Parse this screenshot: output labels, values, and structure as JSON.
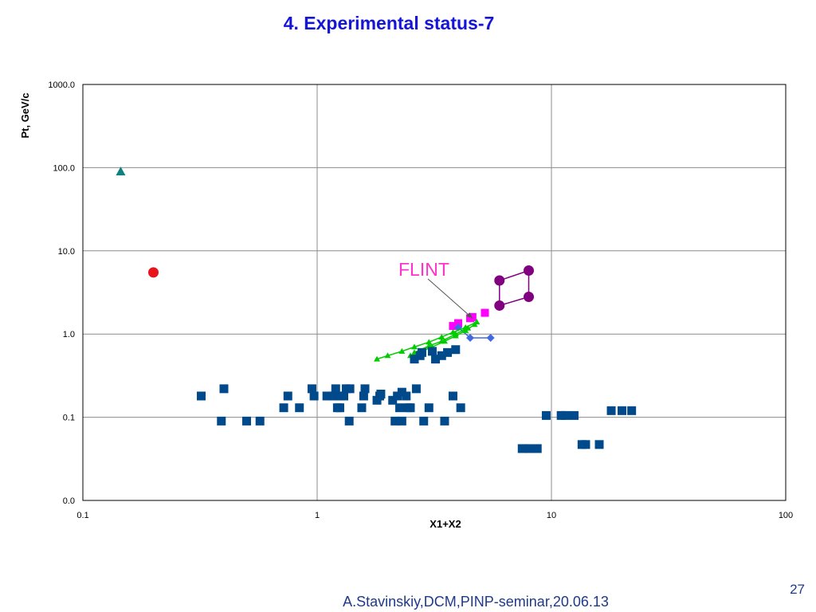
{
  "slide": {
    "title": "4. Experimental status-7",
    "footer": "A.Stavinskiy,DCM,PINP-seminar,20.06.13",
    "page_number": "27"
  },
  "chart_data": {
    "type": "scatter",
    "title": "",
    "xlabel": "X1+X2",
    "ylabel": "Pt, GeV/c",
    "xscale": "log",
    "yscale": "log",
    "xlim": [
      0.1,
      100
    ],
    "ylim": [
      0.01,
      1000
    ],
    "grid": true,
    "x_ticks": [
      0.1,
      1,
      10,
      100
    ],
    "x_tick_labels": [
      "0.1",
      "1",
      "10",
      "100"
    ],
    "y_ticks": [
      0.01,
      0.1,
      1,
      10,
      100,
      1000
    ],
    "y_tick_labels": [
      "0.0",
      "0.1",
      "1.0",
      "10.0",
      "100.0",
      "1000.0"
    ],
    "annotations": [
      {
        "text": "FLINT",
        "arrow_to": [
          4.6,
          1.55
        ],
        "color": "#ff33cc"
      }
    ],
    "series": [
      {
        "name": "triangle-point",
        "marker": "triangle",
        "color": "#0e8080",
        "connected": false,
        "points": [
          [
            0.145,
            90
          ]
        ]
      },
      {
        "name": "circle-point",
        "marker": "circle",
        "color": "#e8141b",
        "connected": false,
        "points": [
          [
            0.2,
            5.5
          ]
        ]
      },
      {
        "name": "purple-box",
        "marker": "circle",
        "color": "#800080",
        "connected": true,
        "closed": true,
        "points": [
          [
            6.0,
            4.4
          ],
          [
            8.0,
            5.8
          ],
          [
            8.0,
            2.8
          ],
          [
            6.0,
            2.2
          ]
        ]
      },
      {
        "name": "flint-squares",
        "marker": "square-small",
        "color": "#ff00ff",
        "connected": false,
        "points": [
          [
            3.8,
            1.25
          ],
          [
            4.0,
            1.35
          ],
          [
            4.5,
            1.55
          ],
          [
            4.6,
            1.6
          ],
          [
            5.2,
            1.8
          ]
        ]
      },
      {
        "name": "blue-diamonds",
        "marker": "diamond",
        "color": "#4169e1",
        "connected": true,
        "points": [
          [
            4.0,
            1.2
          ],
          [
            4.5,
            0.9
          ],
          [
            5.5,
            0.9
          ]
        ]
      },
      {
        "name": "green-line-1",
        "marker": "triangle-small",
        "color": "#00cc00",
        "connected": true,
        "points": [
          [
            1.8,
            0.5
          ],
          [
            2.0,
            0.55
          ],
          [
            2.3,
            0.62
          ],
          [
            2.6,
            0.7
          ],
          [
            3.0,
            0.8
          ],
          [
            3.4,
            0.92
          ],
          [
            3.8,
            1.05
          ],
          [
            4.3,
            1.2
          ],
          [
            4.8,
            1.4
          ]
        ]
      },
      {
        "name": "green-line-2",
        "marker": "triangle-small",
        "color": "#00cc00",
        "connected": true,
        "points": [
          [
            2.5,
            0.55
          ],
          [
            2.8,
            0.62
          ],
          [
            3.1,
            0.7
          ],
          [
            3.5,
            0.82
          ],
          [
            3.9,
            0.95
          ],
          [
            4.3,
            1.1
          ],
          [
            4.7,
            1.3
          ]
        ]
      },
      {
        "name": "green-line-3",
        "marker": "triangle-small",
        "color": "#00cc00",
        "connected": true,
        "points": [
          [
            2.6,
            0.6
          ],
          [
            3.0,
            0.72
          ],
          [
            3.4,
            0.82
          ],
          [
            3.9,
            1.0
          ],
          [
            4.4,
            1.18
          ]
        ]
      },
      {
        "name": "navy-squares",
        "marker": "square",
        "color": "#004a8c",
        "connected": false,
        "points": [
          [
            0.32,
            0.18
          ],
          [
            0.39,
            0.09
          ],
          [
            0.4,
            0.22
          ],
          [
            0.5,
            0.09
          ],
          [
            0.57,
            0.09
          ],
          [
            0.72,
            0.13
          ],
          [
            0.75,
            0.18
          ],
          [
            0.84,
            0.13
          ],
          [
            0.95,
            0.22
          ],
          [
            0.97,
            0.18
          ],
          [
            1.1,
            0.18
          ],
          [
            1.17,
            0.18
          ],
          [
            1.2,
            0.22
          ],
          [
            1.22,
            0.13
          ],
          [
            1.25,
            0.13
          ],
          [
            1.25,
            0.18
          ],
          [
            1.3,
            0.18
          ],
          [
            1.33,
            0.22
          ],
          [
            1.37,
            0.09
          ],
          [
            1.38,
            0.22
          ],
          [
            1.55,
            0.13
          ],
          [
            1.58,
            0.18
          ],
          [
            1.6,
            0.22
          ],
          [
            1.8,
            0.16
          ],
          [
            1.85,
            0.18
          ],
          [
            1.87,
            0.19
          ],
          [
            2.1,
            0.16
          ],
          [
            2.15,
            0.09
          ],
          [
            2.2,
            0.18
          ],
          [
            2.25,
            0.13
          ],
          [
            2.3,
            0.2
          ],
          [
            2.3,
            0.09
          ],
          [
            2.4,
            0.18
          ],
          [
            2.45,
            0.13
          ],
          [
            2.5,
            0.13
          ],
          [
            2.6,
            0.5
          ],
          [
            2.65,
            0.22
          ],
          [
            2.75,
            0.55
          ],
          [
            2.8,
            0.6
          ],
          [
            2.85,
            0.09
          ],
          [
            3.0,
            0.13
          ],
          [
            3.1,
            0.62
          ],
          [
            3.2,
            0.5
          ],
          [
            3.4,
            0.55
          ],
          [
            3.5,
            0.09
          ],
          [
            3.6,
            0.6
          ],
          [
            3.8,
            0.18
          ],
          [
            3.9,
            0.65
          ],
          [
            4.1,
            0.13
          ],
          [
            7.5,
            0.042
          ],
          [
            8.0,
            0.042
          ],
          [
            8.7,
            0.042
          ],
          [
            9.5,
            0.105
          ],
          [
            11.0,
            0.105
          ],
          [
            11.5,
            0.105
          ],
          [
            12.5,
            0.105
          ],
          [
            13.5,
            0.047
          ],
          [
            14.0,
            0.047
          ],
          [
            16.0,
            0.047
          ],
          [
            18.0,
            0.12
          ],
          [
            20.0,
            0.12
          ],
          [
            22.0,
            0.12
          ]
        ]
      }
    ]
  }
}
